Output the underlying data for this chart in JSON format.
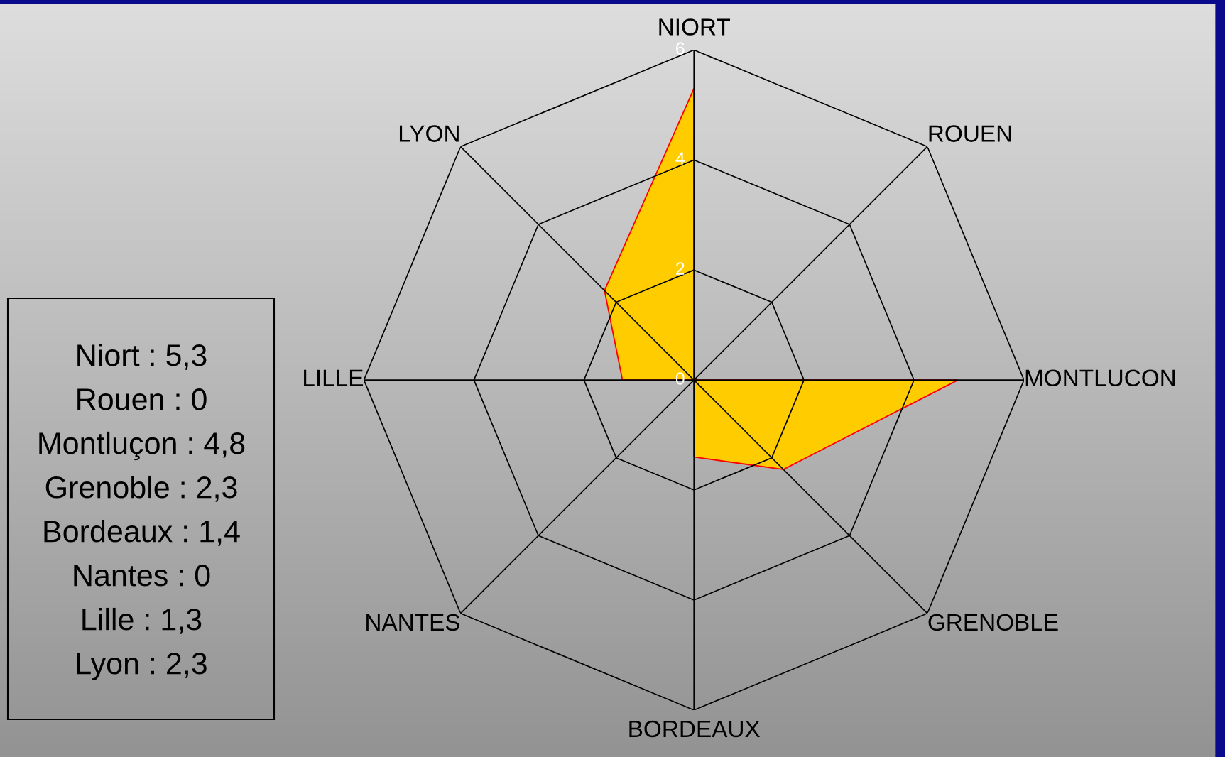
{
  "chart_data": {
    "type": "radar",
    "categories": [
      "NIORT",
      "ROUEN",
      "MONTLUCON",
      "GRENOBLE",
      "BORDEAUX",
      "NANTES",
      "LILLE",
      "LYON"
    ],
    "series": [
      {
        "color": "#ffcc00",
        "values": [
          5.3,
          0,
          4.8,
          2.3,
          1.4,
          0,
          1.3,
          2.3
        ]
      }
    ],
    "ylim": [
      0,
      6
    ],
    "yticks": [
      0,
      2,
      4,
      6
    ],
    "grid": true,
    "annotations": [
      "Niort : 5,3",
      "Rouen : 0",
      "Montluçon : 4,8",
      "Grenoble : 2,3",
      "Bordeaux : 1,4",
      "Nantes : 0",
      "Lille : 1,3",
      "Lyon : 2,3"
    ]
  }
}
